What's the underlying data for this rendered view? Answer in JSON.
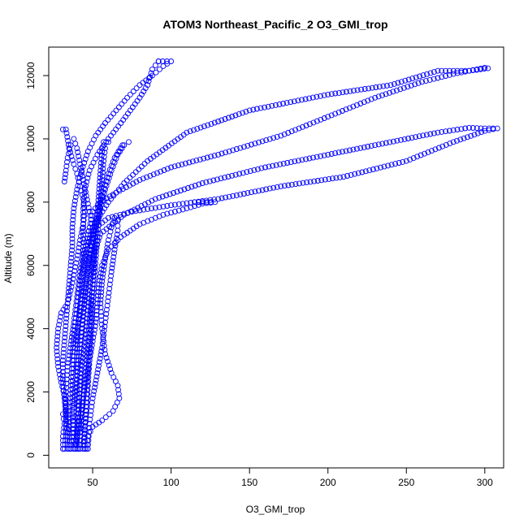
{
  "chart_data": {
    "type": "scatter",
    "title": "ATOM3 Northeast_Pacific_2 O3_GMI_trop",
    "xlabel": "O3_GMI_trop",
    "ylabel": "Altitude (m)",
    "xlim": [
      22,
      312
    ],
    "ylim": [
      -400,
      12900
    ],
    "xticks": [
      50,
      100,
      150,
      200,
      250,
      300
    ],
    "yticks": [
      0,
      2000,
      4000,
      6000,
      8000,
      10000,
      12000
    ],
    "marker": "open-circle",
    "color": "#0000ff",
    "grid": false,
    "legend": "none",
    "series": [
      {
        "points": [
          [
            31,
            200
          ],
          [
            31,
            600
          ],
          [
            32,
            1000
          ],
          [
            31,
            1300
          ],
          [
            33,
            1300
          ],
          [
            33,
            2000
          ],
          [
            34,
            2800
          ],
          [
            36,
            3500
          ],
          [
            38,
            4200
          ],
          [
            40,
            5000
          ],
          [
            42,
            5800
          ],
          [
            45,
            6500
          ],
          [
            48,
            7200
          ],
          [
            50,
            7700
          ],
          [
            55,
            8000
          ],
          [
            65,
            8300
          ],
          [
            80,
            8700
          ],
          [
            100,
            9100
          ],
          [
            130,
            9500
          ],
          [
            170,
            10100
          ],
          [
            200,
            10700
          ],
          [
            230,
            11300
          ],
          [
            260,
            11800
          ],
          [
            280,
            12050
          ],
          [
            300,
            12250
          ],
          [
            302,
            12230
          ],
          [
            290,
            12150
          ],
          [
            270,
            12150
          ],
          [
            240,
            11700
          ],
          [
            200,
            11400
          ],
          [
            150,
            10900
          ],
          [
            110,
            10200
          ],
          [
            85,
            9300
          ],
          [
            70,
            8600
          ],
          [
            60,
            8000
          ],
          [
            50,
            7200
          ],
          [
            45,
            6300
          ],
          [
            42,
            5500
          ],
          [
            40,
            4600
          ],
          [
            38,
            3800
          ],
          [
            37,
            3000
          ],
          [
            36,
            2200
          ],
          [
            35,
            1400
          ],
          [
            35,
            700
          ],
          [
            35,
            200
          ]
        ]
      },
      {
        "points": [
          [
            36,
            200
          ],
          [
            37,
            700
          ],
          [
            38,
            1500
          ],
          [
            40,
            2500
          ],
          [
            42,
            3500
          ],
          [
            44,
            4500
          ],
          [
            46,
            5500
          ],
          [
            48,
            6500
          ],
          [
            52,
            7200
          ],
          [
            60,
            7500
          ],
          [
            75,
            7700
          ],
          [
            100,
            7900
          ],
          [
            130,
            8100
          ],
          [
            170,
            8500
          ],
          [
            210,
            8800
          ],
          [
            250,
            9300
          ],
          [
            280,
            9900
          ],
          [
            300,
            10250
          ],
          [
            308,
            10330
          ],
          [
            300,
            10330
          ],
          [
            290,
            10350
          ],
          [
            270,
            10200
          ],
          [
            230,
            9800
          ],
          [
            200,
            9500
          ],
          [
            160,
            9100
          ],
          [
            120,
            8600
          ],
          [
            90,
            8100
          ],
          [
            70,
            7600
          ],
          [
            55,
            7000
          ],
          [
            50,
            6200
          ],
          [
            48,
            5200
          ],
          [
            46,
            4200
          ],
          [
            44,
            3200
          ],
          [
            42,
            2200
          ],
          [
            41,
            1200
          ],
          [
            40,
            500
          ],
          [
            39,
            200
          ]
        ]
      },
      {
        "points": [
          [
            40,
            200
          ],
          [
            40,
            800
          ],
          [
            41,
            1700
          ],
          [
            42,
            2600
          ],
          [
            43,
            3500
          ],
          [
            44,
            4400
          ],
          [
            46,
            5300
          ],
          [
            48,
            6200
          ],
          [
            50,
            7000
          ],
          [
            53,
            7600
          ],
          [
            56,
            8200
          ],
          [
            60,
            8900
          ],
          [
            64,
            9400
          ],
          [
            69,
            9800
          ],
          [
            73,
            9900
          ],
          [
            70,
            9800
          ],
          [
            66,
            9500
          ],
          [
            62,
            9000
          ],
          [
            58,
            8400
          ],
          [
            55,
            7800
          ],
          [
            52,
            7200
          ],
          [
            49,
            6500
          ],
          [
            46,
            5700
          ],
          [
            43,
            4800
          ],
          [
            40,
            3900
          ],
          [
            38,
            3000
          ],
          [
            37,
            2100
          ],
          [
            37,
            1300
          ],
          [
            38,
            600
          ],
          [
            38,
            200
          ]
        ]
      },
      {
        "points": [
          [
            44,
            200
          ],
          [
            45,
            900
          ],
          [
            46,
            1800
          ],
          [
            47,
            2700
          ],
          [
            48,
            3600
          ],
          [
            49,
            4500
          ],
          [
            50,
            5400
          ],
          [
            51,
            6300
          ],
          [
            52,
            7000
          ],
          [
            53,
            7600
          ],
          [
            54,
            8300
          ],
          [
            55,
            9000
          ],
          [
            56,
            9600
          ],
          [
            57,
            9900
          ],
          [
            60,
            9900
          ],
          [
            58,
            9700
          ],
          [
            57,
            9300
          ],
          [
            56,
            8700
          ],
          [
            55,
            8100
          ],
          [
            54,
            7500
          ],
          [
            53,
            6900
          ],
          [
            52,
            6200
          ],
          [
            51,
            5400
          ],
          [
            50,
            4600
          ],
          [
            49,
            3800
          ],
          [
            48,
            3000
          ],
          [
            47,
            2200
          ],
          [
            46,
            1400
          ],
          [
            45,
            700
          ],
          [
            45,
            200
          ]
        ]
      },
      {
        "points": [
          [
            47,
            200
          ],
          [
            48,
            1000
          ],
          [
            50,
            1800
          ],
          [
            53,
            2600
          ],
          [
            56,
            3400
          ],
          [
            58,
            4200
          ],
          [
            60,
            5000
          ],
          [
            62,
            5800
          ],
          [
            64,
            6500
          ],
          [
            66,
            7100
          ],
          [
            66,
            7400
          ],
          [
            64,
            7500
          ],
          [
            62,
            7200
          ],
          [
            60,
            6800
          ],
          [
            58,
            6200
          ],
          [
            56,
            5500
          ],
          [
            55,
            4800
          ],
          [
            56,
            4000
          ],
          [
            58,
            3200
          ],
          [
            62,
            2600
          ],
          [
            66,
            2200
          ],
          [
            67,
            1800
          ],
          [
            63,
            1400
          ],
          [
            56,
            1100
          ],
          [
            50,
            900
          ],
          [
            47,
            600
          ],
          [
            46,
            200
          ]
        ]
      },
      {
        "points": [
          [
            31,
            10300
          ],
          [
            33,
            10300
          ],
          [
            35,
            9700
          ],
          [
            38,
            9200
          ],
          [
            40,
            8900
          ],
          [
            42,
            8500
          ],
          [
            44,
            8100
          ],
          [
            45,
            7700
          ],
          [
            44,
            7300
          ],
          [
            42,
            6800
          ],
          [
            40,
            6200
          ],
          [
            38,
            5700
          ],
          [
            36,
            5200
          ],
          [
            34,
            4800
          ],
          [
            30,
            4500
          ],
          [
            28,
            4000
          ],
          [
            27,
            3400
          ],
          [
            28,
            2800
          ],
          [
            30,
            2300
          ],
          [
            32,
            1900
          ],
          [
            33,
            1500
          ],
          [
            33,
            1000
          ],
          [
            33,
            600
          ],
          [
            32,
            200
          ]
        ]
      },
      {
        "points": [
          [
            92,
            12450
          ],
          [
            100,
            12450
          ],
          [
            95,
            12300
          ],
          [
            88,
            12000
          ],
          [
            80,
            11700
          ],
          [
            72,
            11300
          ],
          [
            65,
            10900
          ],
          [
            58,
            10500
          ],
          [
            52,
            10100
          ],
          [
            47,
            9600
          ],
          [
            43,
            9000
          ],
          [
            40,
            8400
          ],
          [
            38,
            7800
          ],
          [
            37,
            7200
          ],
          [
            37,
            6600
          ],
          [
            36,
            6000
          ],
          [
            35,
            5400
          ],
          [
            34,
            4800
          ],
          [
            33,
            4200
          ],
          [
            32,
            3600
          ],
          [
            31,
            3000
          ],
          [
            31,
            2400
          ],
          [
            32,
            1800
          ],
          [
            33,
            1200
          ],
          [
            34,
            600
          ],
          [
            34,
            200
          ]
        ]
      },
      {
        "points": [
          [
            92,
            12450
          ],
          [
            88,
            12200
          ],
          [
            85,
            11700
          ],
          [
            80,
            11300
          ],
          [
            74,
            10900
          ],
          [
            68,
            10500
          ],
          [
            60,
            10000
          ],
          [
            53,
            9500
          ],
          [
            48,
            9000
          ],
          [
            45,
            8400
          ],
          [
            44,
            7800
          ],
          [
            44,
            7200
          ],
          [
            44,
            6600
          ],
          [
            44,
            6000
          ],
          [
            43,
            5400
          ],
          [
            42,
            4800
          ],
          [
            41,
            4200
          ],
          [
            40,
            3600
          ],
          [
            40,
            3000
          ],
          [
            40,
            2400
          ],
          [
            40,
            1800
          ],
          [
            41,
            1200
          ],
          [
            42,
            600
          ],
          [
            42,
            200
          ]
        ]
      },
      {
        "points": [
          [
            115,
            8000
          ],
          [
            128,
            8000
          ],
          [
            120,
            7950
          ],
          [
            110,
            7800
          ],
          [
            95,
            7600
          ],
          [
            80,
            7300
          ],
          [
            68,
            6900
          ],
          [
            60,
            6500
          ],
          [
            56,
            6000
          ],
          [
            54,
            5400
          ],
          [
            53,
            4800
          ],
          [
            52,
            4200
          ],
          [
            50,
            3600
          ],
          [
            48,
            3000
          ],
          [
            46,
            2400
          ],
          [
            44,
            1800
          ],
          [
            42,
            1200
          ],
          [
            40,
            600
          ],
          [
            38,
            200
          ]
        ]
      },
      {
        "points": [
          [
            32,
            8650
          ],
          [
            33,
            9000
          ],
          [
            34,
            9400
          ],
          [
            36,
            9800
          ],
          [
            38,
            10000
          ],
          [
            40,
            9700
          ],
          [
            42,
            9200
          ],
          [
            44,
            8700
          ],
          [
            46,
            8200
          ],
          [
            48,
            7700
          ],
          [
            50,
            7200
          ],
          [
            51,
            6600
          ],
          [
            51,
            6000
          ],
          [
            50,
            5400
          ],
          [
            49,
            4800
          ],
          [
            48,
            4200
          ],
          [
            47,
            3600
          ],
          [
            46,
            3000
          ],
          [
            45,
            2400
          ],
          [
            44,
            1800
          ],
          [
            43,
            1200
          ],
          [
            42,
            600
          ],
          [
            41,
            200
          ]
        ]
      }
    ]
  }
}
